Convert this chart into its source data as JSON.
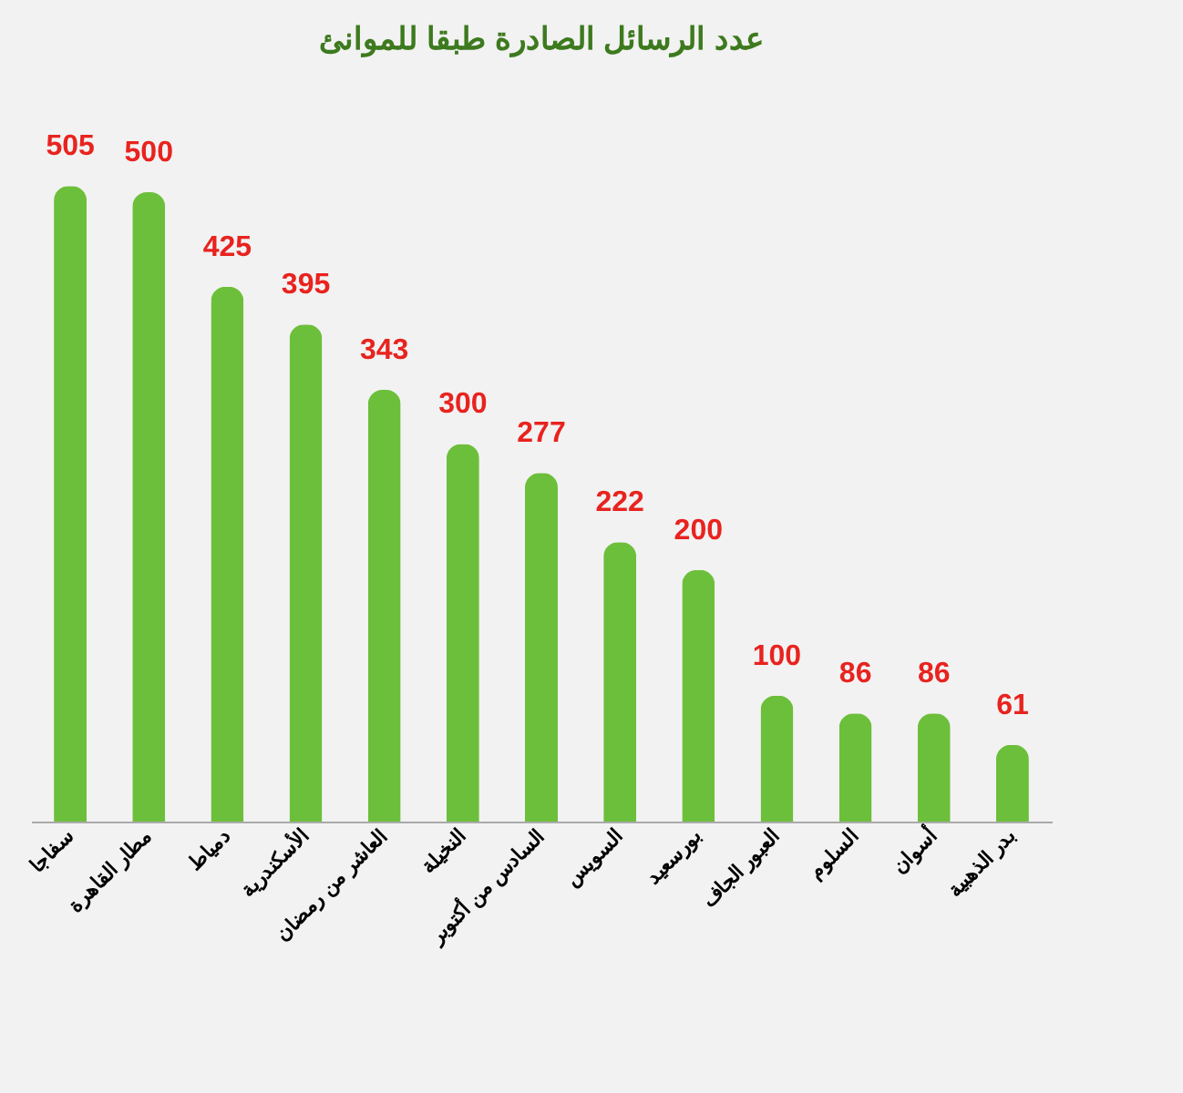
{
  "chart_data": {
    "type": "bar",
    "title": "عدد الرسائل الصادرة طبقا للموانئ",
    "categories": [
      "سفاجا",
      "مطار القاهرة",
      "دمياط",
      "الأسكندرية",
      "العاشر من رمضان",
      "النخيلة",
      "السادس من أكتوبر",
      "السويس",
      "بورسعيد",
      "العبور الجاف",
      "السلوم",
      "أسوان",
      "بدر الذهبية"
    ],
    "values": [
      505,
      500,
      425,
      395,
      343,
      300,
      277,
      222,
      200,
      100,
      86,
      86,
      61
    ],
    "color": "#6cbf3a",
    "data_labels": true
  }
}
